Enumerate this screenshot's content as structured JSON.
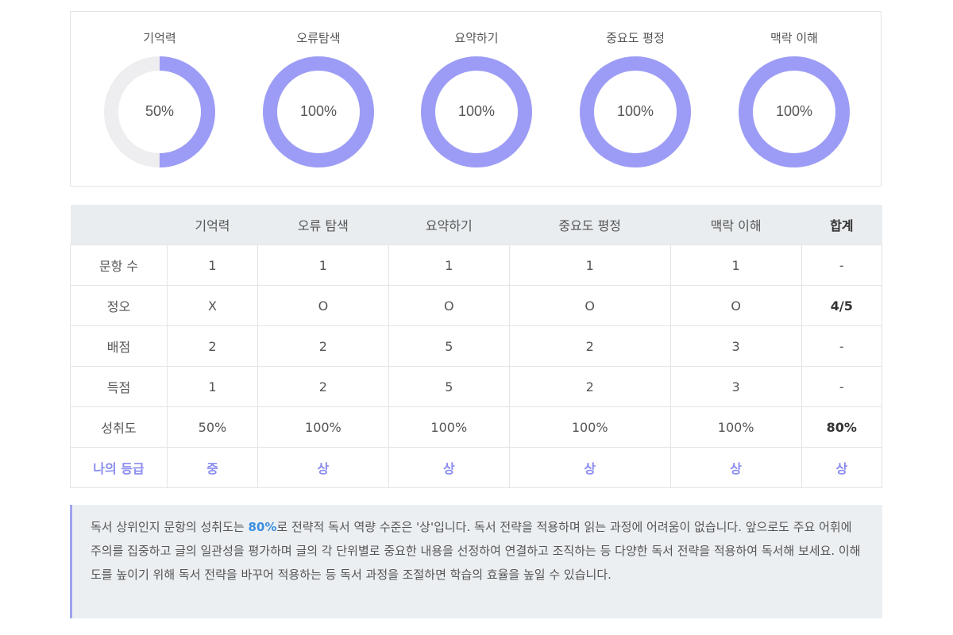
{
  "donuts": [
    {
      "label": "기억력",
      "value": 50,
      "text": "50%"
    },
    {
      "label": "오류탐색",
      "value": 100,
      "text": "100%"
    },
    {
      "label": "요약하기",
      "value": 100,
      "text": "100%"
    },
    {
      "label": "중요도 평정",
      "value": 100,
      "text": "100%"
    },
    {
      "label": "맥락 이해",
      "value": 100,
      "text": "100%"
    }
  ],
  "colors": {
    "ring_fill": "#9c9cf6",
    "ring_track": "#eeeef0",
    "grade": "#8a8cf0",
    "highlight": "#3b8ee0"
  },
  "table": {
    "headers": [
      "",
      "기억력",
      "오류 탐색",
      "요약하기",
      "중요도 평정",
      "맥락 이해",
      "합계"
    ],
    "rows": [
      {
        "label": "문항 수",
        "cells": [
          "1",
          "1",
          "1",
          "1",
          "1",
          "-"
        ]
      },
      {
        "label": "정오",
        "cells": [
          "X",
          "O",
          "O",
          "O",
          "O",
          "4/5"
        ]
      },
      {
        "label": "배점",
        "cells": [
          "2",
          "2",
          "5",
          "2",
          "3",
          "-"
        ]
      },
      {
        "label": "득점",
        "cells": [
          "1",
          "2",
          "5",
          "2",
          "3",
          "-"
        ]
      },
      {
        "label": "성취도",
        "cells": [
          "50%",
          "100%",
          "100%",
          "100%",
          "100%",
          "80%"
        ]
      },
      {
        "label": "나의 등급",
        "cells": [
          "중",
          "상",
          "상",
          "상",
          "상",
          "상"
        ]
      }
    ]
  },
  "summary": {
    "before": "독서 상위인지 문항의 성취도는 ",
    "highlight": "80%",
    "after": "로 전략적 독서 역량 수준은 '상'입니다. 독서 전략을 적용하며 읽는 과정에 어려움이 없습니다. 앞으로도 주요 어휘에 주의를 집중하고 글의 일관성을 평가하며 글의 각 단위별로 중요한 내용을 선정하여 연결하고 조직하는 등 다양한 독서 전략을 적용하여 독서해 보세요. 이해도를 높이기 위해 독서 전략을 바꾸어 적용하는 등 독서 과정을 조절하면 학습의 효율을 높일 수 있습니다."
  }
}
